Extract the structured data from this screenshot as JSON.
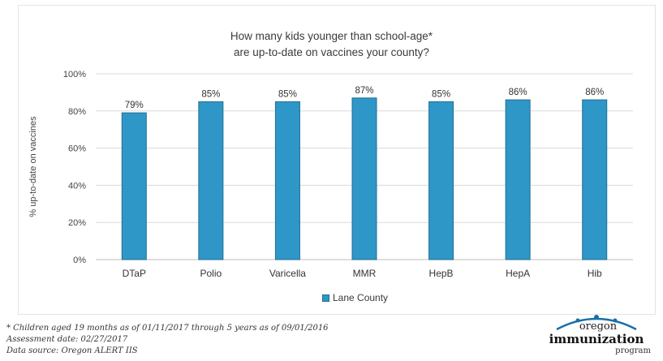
{
  "chart_data": {
    "type": "bar",
    "title_line1": "How many kids younger than school-age*",
    "title_line2": "are up-to-date on vaccines your county?",
    "ylabel": "% up-to-date on vaccines",
    "xlabel": "",
    "categories": [
      "DTaP",
      "Polio",
      "Varicella",
      "MMR",
      "HepB",
      "HepA",
      "Hib"
    ],
    "series": [
      {
        "name": "Lane County",
        "values": [
          79,
          85,
          85,
          87,
          85,
          86,
          86
        ],
        "color": "#2f97c7"
      }
    ],
    "data_labels": [
      "79%",
      "85%",
      "85%",
      "87%",
      "85%",
      "86%",
      "86%"
    ],
    "yticks": [
      "0%",
      "20%",
      "40%",
      "60%",
      "80%",
      "100%"
    ],
    "ylim": [
      0,
      100
    ],
    "grid": true,
    "legend": "bottom-center"
  },
  "footnotes": {
    "line1": "* Children aged 19 months as of 01/11/2017 through 5 years as of 09/01/2016",
    "line2": "Assessment date: 02/27/2017",
    "line3": "Data source: Oregon ALERT IIS"
  },
  "logo": {
    "line1": "oregon",
    "line2": "immunization",
    "line3": "program"
  }
}
